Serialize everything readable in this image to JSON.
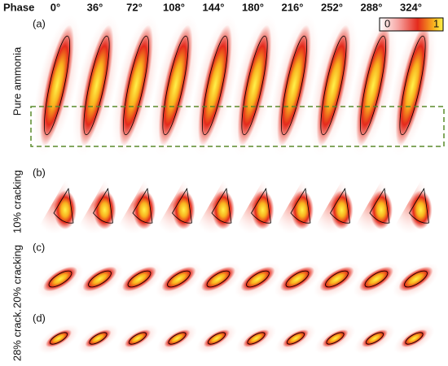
{
  "header": {
    "phase_label": "Phase",
    "phases": [
      "0°",
      "36°",
      "72°",
      "108°",
      "144°",
      "180°",
      "216°",
      "252°",
      "288°",
      "324°"
    ]
  },
  "rows": [
    {
      "letter": "(a)",
      "title": "Pure ammonia"
    },
    {
      "letter": "(b)",
      "title": "10% cracking"
    },
    {
      "letter": "(c)",
      "title": "20% cracking"
    },
    {
      "letter": "(d)",
      "title": "28% crack."
    }
  ],
  "colorbar": {
    "min": "0",
    "max": "1"
  }
}
